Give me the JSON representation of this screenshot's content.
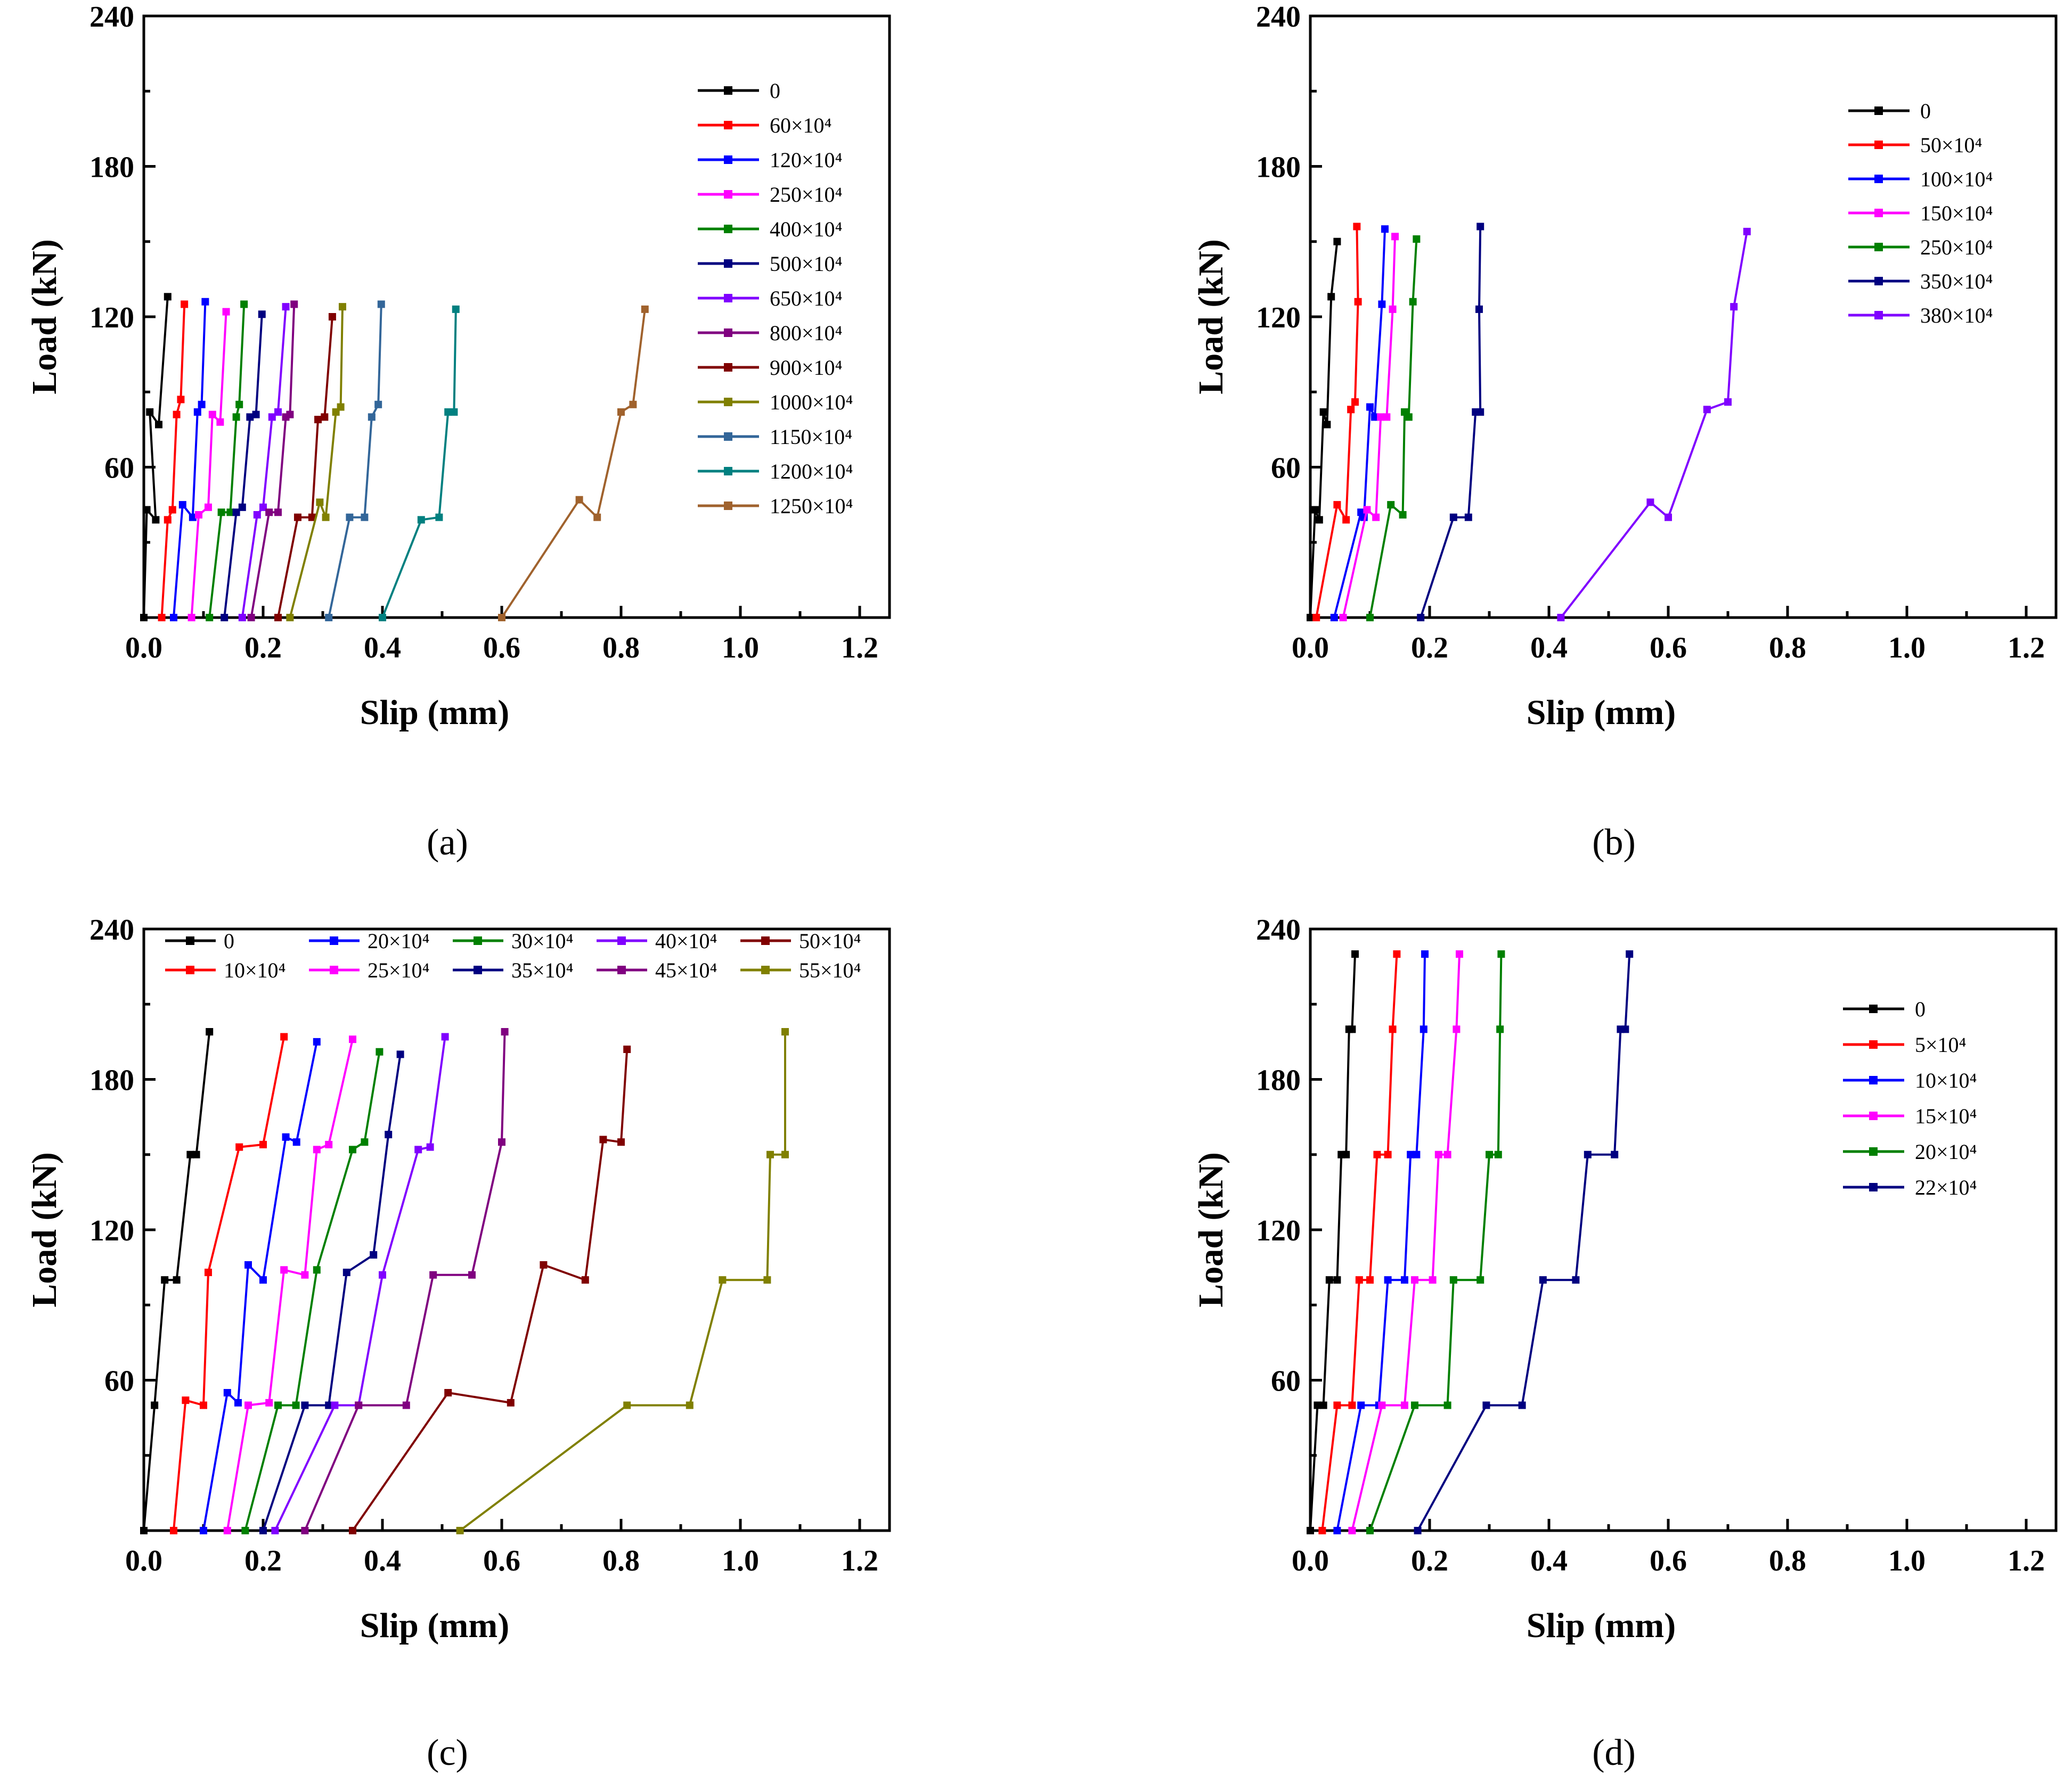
{
  "chart_data": [
    {
      "type": "line",
      "caption": "(a)",
      "xlabel": "Slip (mm)",
      "ylabel": "Load (kN)",
      "xlim": [
        0.0,
        1.25
      ],
      "ylim": [
        0,
        240
      ],
      "xticks": [
        "0.0",
        "0.2",
        "0.4",
        "0.6",
        "0.8",
        "1.0",
        "1.2"
      ],
      "yticks": [
        "60",
        "120",
        "180",
        "240"
      ],
      "legend_position": "top-right",
      "legend_columns": 1,
      "series": [
        {
          "name": "0",
          "color": "#000000",
          "x": [
            0.0,
            0.005,
            0.02,
            0.01,
            0.025,
            0.04
          ],
          "y": [
            0,
            43,
            39,
            82,
            77,
            128
          ]
        },
        {
          "name": "60×10⁴",
          "color": "#ff0000",
          "x": [
            0.03,
            0.04,
            0.048,
            0.055,
            0.062,
            0.068
          ],
          "y": [
            0,
            39,
            43,
            81,
            87,
            125
          ]
        },
        {
          "name": "120×10⁴",
          "color": "#0000ff",
          "x": [
            0.05,
            0.065,
            0.082,
            0.09,
            0.097,
            0.103
          ],
          "y": [
            0,
            45,
            40,
            82,
            85,
            126
          ]
        },
        {
          "name": "250×10⁴",
          "color": "#ff00ff",
          "x": [
            0.08,
            0.092,
            0.108,
            0.115,
            0.128,
            0.138
          ],
          "y": [
            0,
            41,
            44,
            81,
            78,
            122
          ]
        },
        {
          "name": "400×10⁴",
          "color": "#008000",
          "x": [
            0.11,
            0.13,
            0.145,
            0.155,
            0.16,
            0.168
          ],
          "y": [
            0,
            42,
            42,
            80,
            85,
            125
          ]
        },
        {
          "name": "500×10⁴",
          "color": "#000080",
          "x": [
            0.135,
            0.155,
            0.165,
            0.178,
            0.188,
            0.198
          ],
          "y": [
            0,
            42,
            44,
            80,
            81,
            121
          ]
        },
        {
          "name": "650×10⁴",
          "color": "#8000ff",
          "x": [
            0.165,
            0.19,
            0.2,
            0.215,
            0.225,
            0.238
          ],
          "y": [
            0,
            41,
            44,
            80,
            82,
            124
          ]
        },
        {
          "name": "800×10⁴",
          "color": "#800080",
          "x": [
            0.18,
            0.21,
            0.225,
            0.238,
            0.245,
            0.252
          ],
          "y": [
            0,
            42,
            42,
            80,
            81,
            125
          ]
        },
        {
          "name": "900×10⁴",
          "color": "#800000",
          "x": [
            0.225,
            0.258,
            0.282,
            0.292,
            0.303,
            0.316
          ],
          "y": [
            0,
            40,
            40,
            79,
            80,
            120
          ]
        },
        {
          "name": "1000×10⁴",
          "color": "#808000",
          "x": [
            0.245,
            0.295,
            0.305,
            0.322,
            0.33,
            0.333
          ],
          "y": [
            0,
            46,
            40,
            82,
            84,
            124
          ]
        },
        {
          "name": "1150×10⁴",
          "color": "#336699",
          "x": [
            0.31,
            0.345,
            0.37,
            0.382,
            0.393,
            0.398
          ],
          "y": [
            0,
            40,
            40,
            80,
            85,
            125
          ]
        },
        {
          "name": "1200×10⁴",
          "color": "#008080",
          "x": [
            0.4,
            0.465,
            0.495,
            0.51,
            0.52,
            0.523
          ],
          "y": [
            0,
            39,
            40,
            82,
            82,
            123
          ]
        },
        {
          "name": "1250×10⁴",
          "color": "#a0622d",
          "x": [
            0.6,
            0.73,
            0.76,
            0.8,
            0.82,
            0.84
          ],
          "y": [
            0,
            47,
            40,
            82,
            85,
            123
          ]
        },
        {
          "name": "",
          "color": "#000000",
          "x": [
            0.03
          ],
          "y": [
            128
          ],
          "hidden": true
        }
      ]
    },
    {
      "type": "line",
      "caption": "(b)",
      "xlabel": "Slip (mm)",
      "ylabel": "Load (kN)",
      "xlim": [
        0.0,
        1.25
      ],
      "ylim": [
        0,
        240
      ],
      "xticks": [
        "0.0",
        "0.2",
        "0.4",
        "0.6",
        "0.8",
        "1.0",
        "1.2"
      ],
      "yticks": [
        "60",
        "120",
        "180",
        "240"
      ],
      "legend_position": "top-right",
      "legend_columns": 1,
      "series": [
        {
          "name": "0",
          "color": "#000000",
          "x": [
            0.0,
            0.008,
            0.015,
            0.022,
            0.028,
            0.035,
            0.045
          ],
          "y": [
            0,
            43,
            39,
            82,
            77,
            128,
            150
          ]
        },
        {
          "name": "50×10⁴",
          "color": "#ff0000",
          "x": [
            0.01,
            0.045,
            0.06,
            0.068,
            0.075,
            0.08,
            0.078
          ],
          "y": [
            0,
            45,
            39,
            83,
            86,
            126,
            156
          ]
        },
        {
          "name": "100×10⁴",
          "color": "#0000ff",
          "x": [
            0.04,
            0.085,
            0.09,
            0.1,
            0.108,
            0.12,
            0.125
          ],
          "y": [
            0,
            42,
            40,
            84,
            80,
            125,
            155
          ]
        },
        {
          "name": "150×10⁴",
          "color": "#ff00ff",
          "x": [
            0.055,
            0.095,
            0.11,
            0.118,
            0.128,
            0.138,
            0.142
          ],
          "y": [
            0,
            43,
            40,
            80,
            80,
            123,
            152
          ]
        },
        {
          "name": "250×10⁴",
          "color": "#008000",
          "x": [
            0.1,
            0.135,
            0.155,
            0.158,
            0.165,
            0.172,
            0.178
          ],
          "y": [
            0,
            45,
            41,
            82,
            80,
            126,
            151
          ]
        },
        {
          "name": "350×10⁴",
          "color": "#000080",
          "x": [
            0.185,
            0.24,
            0.265,
            0.277,
            0.285,
            0.283,
            0.285
          ],
          "y": [
            0,
            40,
            40,
            82,
            82,
            123,
            156
          ]
        },
        {
          "name": "380×10⁴",
          "color": "#8000ff",
          "x": [
            0.42,
            0.57,
            0.6,
            0.665,
            0.7,
            0.71,
            0.732
          ],
          "y": [
            0,
            46,
            40,
            83,
            86,
            124,
            154
          ]
        }
      ]
    },
    {
      "type": "line",
      "caption": "(c)",
      "xlabel": "Slip (mm)",
      "ylabel": "Load (kN)",
      "xlim": [
        0.0,
        1.25
      ],
      "ylim": [
        0,
        240
      ],
      "xticks": [
        "0.0",
        "0.2",
        "0.4",
        "0.6",
        "0.8",
        "1.0",
        "1.2"
      ],
      "yticks": [
        "60",
        "120",
        "180",
        "240"
      ],
      "legend_position": "top",
      "legend_columns": 6,
      "series": [
        {
          "name": "0",
          "color": "#000000",
          "x": [
            0.0,
            0.018,
            0.035,
            0.055,
            0.078,
            0.088,
            0.11
          ],
          "y": [
            0,
            50,
            100,
            100,
            150,
            150,
            199
          ]
        },
        {
          "name": "10×10⁴",
          "color": "#ff0000",
          "x": [
            0.05,
            0.07,
            0.1,
            0.108,
            0.16,
            0.2,
            0.235
          ],
          "y": [
            0,
            52,
            50,
            103,
            153,
            154,
            197
          ]
        },
        {
          "name": "20×10⁴",
          "color": "#0000ff",
          "x": [
            0.1,
            0.14,
            0.158,
            0.175,
            0.2,
            0.238,
            0.256,
            0.29
          ],
          "y": [
            0,
            55,
            51,
            106,
            100,
            157,
            155,
            195
          ]
        },
        {
          "name": "25×10⁴",
          "color": "#ff00ff",
          "x": [
            0.14,
            0.175,
            0.21,
            0.235,
            0.27,
            0.29,
            0.31,
            0.35
          ],
          "y": [
            0,
            50,
            51,
            104,
            102,
            152,
            154,
            196
          ]
        },
        {
          "name": "30×10⁴",
          "color": "#008000",
          "x": [
            0.17,
            0.225,
            0.255,
            0.29,
            0.35,
            0.37,
            0.395
          ],
          "y": [
            0,
            50,
            50,
            104,
            152,
            155,
            191
          ]
        },
        {
          "name": "35×10⁴",
          "color": "#000080",
          "x": [
            0.2,
            0.27,
            0.31,
            0.34,
            0.385,
            0.41,
            0.43
          ],
          "y": [
            0,
            50,
            50,
            103,
            110,
            158,
            190
          ]
        },
        {
          "name": "40×10⁴",
          "color": "#8000ff",
          "x": [
            0.22,
            0.32,
            0.36,
            0.4,
            0.46,
            0.48,
            0.505
          ],
          "y": [
            0,
            50,
            50,
            102,
            152,
            153,
            197
          ]
        },
        {
          "name": "45×10⁴",
          "color": "#800080",
          "x": [
            0.27,
            0.36,
            0.44,
            0.485,
            0.55,
            0.6,
            0.605
          ],
          "y": [
            0,
            50,
            50,
            102,
            102,
            155,
            199
          ]
        },
        {
          "name": "50×10⁴",
          "color": "#800000",
          "x": [
            0.35,
            0.51,
            0.615,
            0.67,
            0.74,
            0.77,
            0.8,
            0.81
          ],
          "y": [
            0,
            55,
            51,
            106,
            100,
            156,
            155,
            192
          ]
        },
        {
          "name": "55×10⁴",
          "color": "#808000",
          "x": [
            0.53,
            0.81,
            0.915,
            0.97,
            1.045,
            1.05,
            1.075,
            1.075
          ],
          "y": [
            0,
            50,
            50,
            100,
            100,
            150,
            150,
            199
          ]
        },
        {
          "name": "",
          "color": "#000000",
          "x": [
            0.2,
            0.39
          ],
          "y": [
            0,
            0
          ],
          "hidden": true
        }
      ]
    },
    {
      "type": "line",
      "caption": "(d)",
      "xlabel": "Slip (mm)",
      "ylabel": "Load (kN)",
      "xlim": [
        0.0,
        1.25
      ],
      "ylim": [
        0,
        240
      ],
      "xticks": [
        "0.0",
        "0.2",
        "0.4",
        "0.6",
        "0.8",
        "1.0",
        "1.2"
      ],
      "yticks": [
        "60",
        "120",
        "180",
        "240"
      ],
      "legend_position": "right",
      "legend_columns": 1,
      "series": [
        {
          "name": "0",
          "color": "#000000",
          "x": [
            0.0,
            0.012,
            0.022,
            0.032,
            0.045,
            0.052,
            0.06,
            0.065,
            0.07,
            0.075
          ],
          "y": [
            0,
            50,
            50,
            100,
            100,
            150,
            150,
            200,
            200,
            230
          ]
        },
        {
          "name": "5×10⁴",
          "color": "#ff0000",
          "x": [
            0.02,
            0.045,
            0.07,
            0.082,
            0.1,
            0.112,
            0.13,
            0.138,
            0.145
          ],
          "y": [
            0,
            50,
            50,
            100,
            100,
            150,
            150,
            200,
            230
          ]
        },
        {
          "name": "10×10⁴",
          "color": "#0000ff",
          "x": [
            0.045,
            0.085,
            0.115,
            0.13,
            0.158,
            0.168,
            0.178,
            0.19,
            0.192
          ],
          "y": [
            0,
            50,
            50,
            100,
            100,
            150,
            150,
            200,
            230
          ]
        },
        {
          "name": "15×10⁴",
          "color": "#ff00ff",
          "x": [
            0.07,
            0.12,
            0.158,
            0.175,
            0.205,
            0.215,
            0.23,
            0.245,
            0.25
          ],
          "y": [
            0,
            50,
            50,
            100,
            100,
            150,
            150,
            200,
            230
          ]
        },
        {
          "name": "20×10⁴",
          "color": "#008000",
          "x": [
            0.1,
            0.175,
            0.23,
            0.24,
            0.285,
            0.3,
            0.315,
            0.318,
            0.32
          ],
          "y": [
            0,
            50,
            50,
            100,
            100,
            150,
            150,
            200,
            230
          ]
        },
        {
          "name": "22×10⁴",
          "color": "#000080",
          "x": [
            0.18,
            0.295,
            0.355,
            0.39,
            0.445,
            0.465,
            0.51,
            0.52,
            0.528,
            0.535
          ],
          "y": [
            0,
            50,
            50,
            100,
            100,
            150,
            150,
            200,
            200,
            230
          ]
        }
      ]
    }
  ]
}
